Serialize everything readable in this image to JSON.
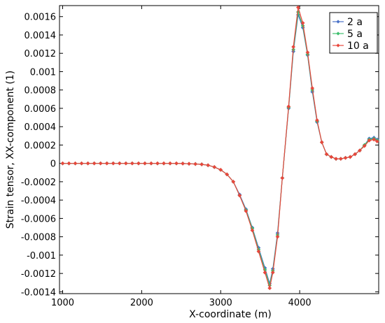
{
  "chart_data": {
    "type": "line",
    "xlabel": "X-coordinate (m)",
    "ylabel": "Strain tensor, XX-component (1)",
    "xlim": [
      960,
      5000
    ],
    "ylim": [
      -0.00142,
      0.00172
    ],
    "x_ticks": [
      1000,
      2000,
      3000,
      4000
    ],
    "x_tick_labels": [
      "1000",
      "2000",
      "3000",
      "4000"
    ],
    "y_ticks": [
      0.0016,
      0.0014,
      0.0012,
      0.001,
      0.0008,
      0.0006,
      0.0004,
      0.0002,
      0,
      -0.0002,
      -0.0004,
      -0.0006,
      -0.0008,
      -0.001,
      -0.0012,
      -0.0014
    ],
    "y_tick_labels": [
      "0.0016",
      "0.0014",
      "0.0012",
      "0.001",
      "0.0008",
      "0.0006",
      "0.0004",
      "0.0002",
      "0",
      "-0.0002",
      "-0.0004",
      "-0.0006",
      "-0.0008",
      "-0.001",
      "-0.0012",
      "-0.0014"
    ],
    "grid": false,
    "legend_position": "top-right",
    "x": [
      1000,
      1080,
      1160,
      1240,
      1320,
      1400,
      1480,
      1560,
      1640,
      1720,
      1800,
      1880,
      1960,
      2040,
      2120,
      2200,
      2280,
      2360,
      2440,
      2520,
      2600,
      2680,
      2760,
      2840,
      2920,
      3000,
      3080,
      3160,
      3240,
      3320,
      3400,
      3480,
      3560,
      3620,
      3660,
      3720,
      3780,
      3860,
      3920,
      3980,
      4040,
      4100,
      4160,
      4220,
      4280,
      4340,
      4400,
      4460,
      4520,
      4580,
      4640,
      4700,
      4760,
      4820,
      4880,
      4940,
      4980
    ],
    "series": [
      {
        "name": "2 a",
        "color": "#4a72c8",
        "values": [
          0,
          0,
          0,
          0,
          0,
          0,
          0,
          0,
          0,
          0,
          0,
          0,
          0,
          0,
          0,
          0,
          0,
          0,
          0,
          -2e-06,
          -4e-06,
          -7e-06,
          -1.1e-05,
          -2e-05,
          -4e-05,
          -7e-05,
          -0.00012,
          -0.0002,
          -0.00034,
          -0.0005,
          -0.0007,
          -0.00092,
          -0.00114,
          -0.00131,
          -0.00115,
          -0.00076,
          -0.00016,
          0.0006,
          0.00122,
          0.00162,
          0.00148,
          0.00118,
          0.00078,
          0.00045,
          0.00023,
          0.0001,
          7e-05,
          5e-05,
          5e-05,
          6e-05,
          7e-05,
          0.0001,
          0.00014,
          0.0002,
          0.00027,
          0.00028,
          0.00026
        ]
      },
      {
        "name": "5 a",
        "color": "#3fbf6e",
        "values": [
          0,
          0,
          0,
          0,
          0,
          0,
          0,
          0,
          0,
          0,
          0,
          0,
          0,
          0,
          0,
          0,
          0,
          0,
          0,
          -2e-06,
          -4e-06,
          -7e-06,
          -1.1e-05,
          -2e-05,
          -4e-05,
          -7e-05,
          -0.00012,
          -0.0002,
          -0.00035,
          -0.00051,
          -0.00071,
          -0.00094,
          -0.00116,
          -0.00133,
          -0.00117,
          -0.00078,
          -0.00016,
          0.00061,
          0.00124,
          0.00165,
          0.0015,
          0.00119,
          0.0008,
          0.00046,
          0.00023,
          0.0001,
          7e-05,
          5e-05,
          5e-05,
          6e-05,
          7e-05,
          0.0001,
          0.00014,
          0.0002,
          0.00026,
          0.00027,
          0.00025
        ]
      },
      {
        "name": "10 a",
        "color": "#e8473c",
        "values": [
          0,
          0,
          0,
          0,
          0,
          0,
          0,
          0,
          0,
          0,
          0,
          0,
          0,
          0,
          0,
          0,
          0,
          0,
          0,
          -2e-06,
          -4e-06,
          -7e-06,
          -1.1e-05,
          -2e-05,
          -4e-05,
          -7e-05,
          -0.00012,
          -0.0002,
          -0.00035,
          -0.00052,
          -0.00073,
          -0.00096,
          -0.00119,
          -0.00136,
          -0.00119,
          -0.0008,
          -0.00016,
          0.00062,
          0.00127,
          0.0017,
          0.00153,
          0.00121,
          0.00082,
          0.00047,
          0.00023,
          0.0001,
          7e-05,
          5e-05,
          5e-05,
          6e-05,
          7e-05,
          0.0001,
          0.00014,
          0.00019,
          0.00025,
          0.00026,
          0.00024
        ]
      }
    ]
  }
}
